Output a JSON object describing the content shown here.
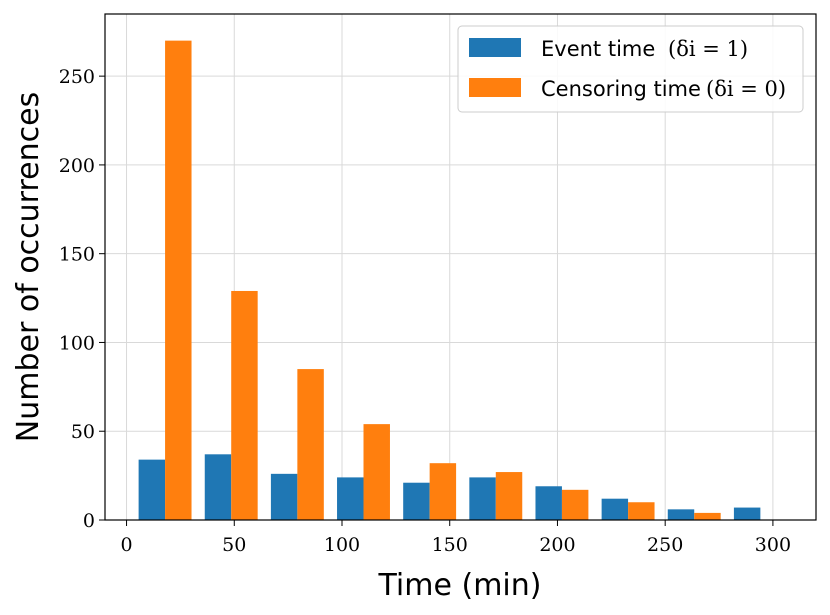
{
  "chart_data": {
    "type": "bar",
    "title": "",
    "xlabel": "Time (min)",
    "ylabel": "Number of occurrences",
    "xlim": [
      -10,
      320
    ],
    "ylim": [
      0,
      285
    ],
    "xticks": [
      0,
      50,
      100,
      150,
      200,
      250,
      300
    ],
    "yticks": [
      0,
      50,
      100,
      150,
      200,
      250
    ],
    "bin_edges": [
      5.6,
      36.3,
      67.0,
      97.7,
      128.4,
      159.1,
      189.8,
      220.5,
      251.2,
      281.9,
      312.6
    ],
    "grid": true,
    "legend_position": "top-right",
    "series": [
      {
        "name": "Event time",
        "name_math": "(δi = 1)",
        "color": "#1f77b4",
        "values": [
          34,
          37,
          26,
          24,
          21,
          24,
          19,
          12,
          6,
          7
        ]
      },
      {
        "name": "Censoring time",
        "name_math": "(δi = 0)",
        "color": "#ff7f0e",
        "values": [
          270,
          129,
          85,
          54,
          32,
          27,
          17,
          10,
          4,
          0
        ]
      }
    ]
  }
}
